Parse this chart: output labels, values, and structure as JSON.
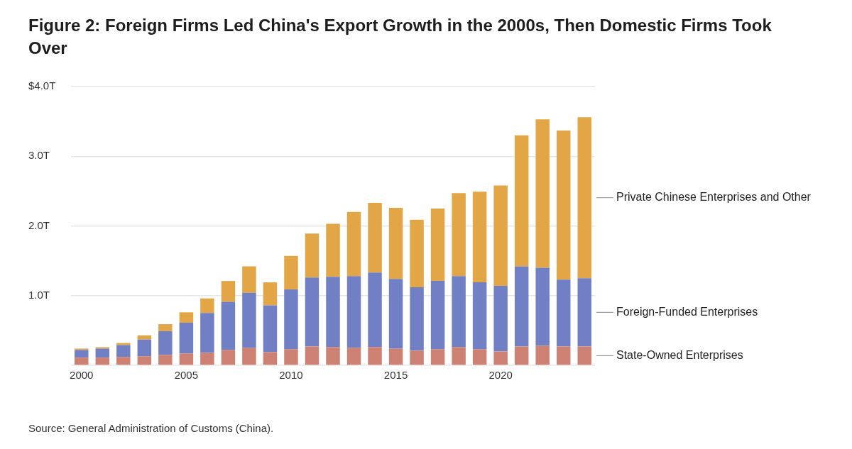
{
  "chart_data": {
    "type": "bar",
    "title": "Figure 2: Foreign Firms Led China's Export Growth in the 2000s, Then Domestic Firms Took Over",
    "categories": [
      "2000",
      null,
      null,
      null,
      null,
      "2005",
      null,
      null,
      null,
      null,
      "2010",
      null,
      null,
      null,
      null,
      "2015",
      null,
      null,
      null,
      null,
      "2020",
      null,
      null,
      null,
      null
    ],
    "stacked": true,
    "series": [
      {
        "name": "State-Owned Enterprises",
        "color": "#cd8172",
        "values": [
          0.11,
          0.11,
          0.12,
          0.13,
          0.15,
          0.17,
          0.18,
          0.22,
          0.25,
          0.19,
          0.23,
          0.27,
          0.26,
          0.25,
          0.26,
          0.24,
          0.21,
          0.23,
          0.26,
          0.23,
          0.2,
          0.27,
          0.28,
          0.27,
          0.27
        ]
      },
      {
        "name": "Foreign-Funded Enterprises",
        "color": "#717fc4",
        "values": [
          0.11,
          0.13,
          0.17,
          0.24,
          0.34,
          0.44,
          0.57,
          0.69,
          0.79,
          0.67,
          0.86,
          0.99,
          1.01,
          1.03,
          1.07,
          1.0,
          0.91,
          0.98,
          1.02,
          0.96,
          0.94,
          1.15,
          1.12,
          0.96,
          0.98
        ]
      },
      {
        "name": "Private Chinese Enterprises and Other",
        "color": "#e3a646",
        "values": [
          0.02,
          0.02,
          0.03,
          0.06,
          0.1,
          0.15,
          0.21,
          0.3,
          0.38,
          0.33,
          0.48,
          0.63,
          0.76,
          0.92,
          1.0,
          1.02,
          0.97,
          1.04,
          1.19,
          1.3,
          1.44,
          1.88,
          2.13,
          2.14,
          2.31
        ]
      }
    ],
    "ylim": [
      0,
      4
    ],
    "yticks": [
      {
        "value": 0,
        "label": null
      },
      {
        "value": 1,
        "label": "1.0T"
      },
      {
        "value": 2,
        "label": "2.0T"
      },
      {
        "value": 3,
        "label": "3.0T"
      },
      {
        "value": 4,
        "label": "$4.0T"
      }
    ],
    "grid": "y",
    "annotations": [
      "Source: General Administration of Customs (China)."
    ]
  }
}
